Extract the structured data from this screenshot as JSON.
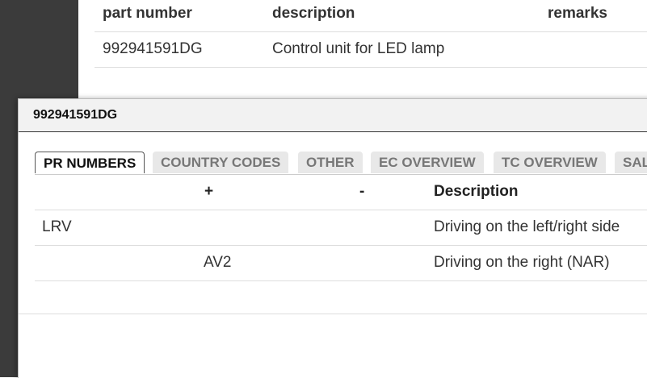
{
  "background_table": {
    "headers": [
      "part number",
      "description",
      "remarks"
    ],
    "rows": [
      [
        "992941591DG",
        "Control unit for LED lamp",
        null
      ]
    ]
  },
  "dialog": {
    "title": "992941591DG",
    "tabs": [
      "PR NUMBERS",
      "COUNTRY CODES",
      "OTHER",
      "EC OVERVIEW",
      "TC OVERVIEW",
      "SAL"
    ],
    "table": {
      "headers": [
        null,
        "+",
        "-",
        "Description"
      ],
      "rows": [
        [
          "LRV",
          null,
          null,
          "Driving on the left/right side"
        ],
        [
          null,
          "AV2",
          null,
          "Driving on the right (NAR)"
        ]
      ]
    }
  }
}
